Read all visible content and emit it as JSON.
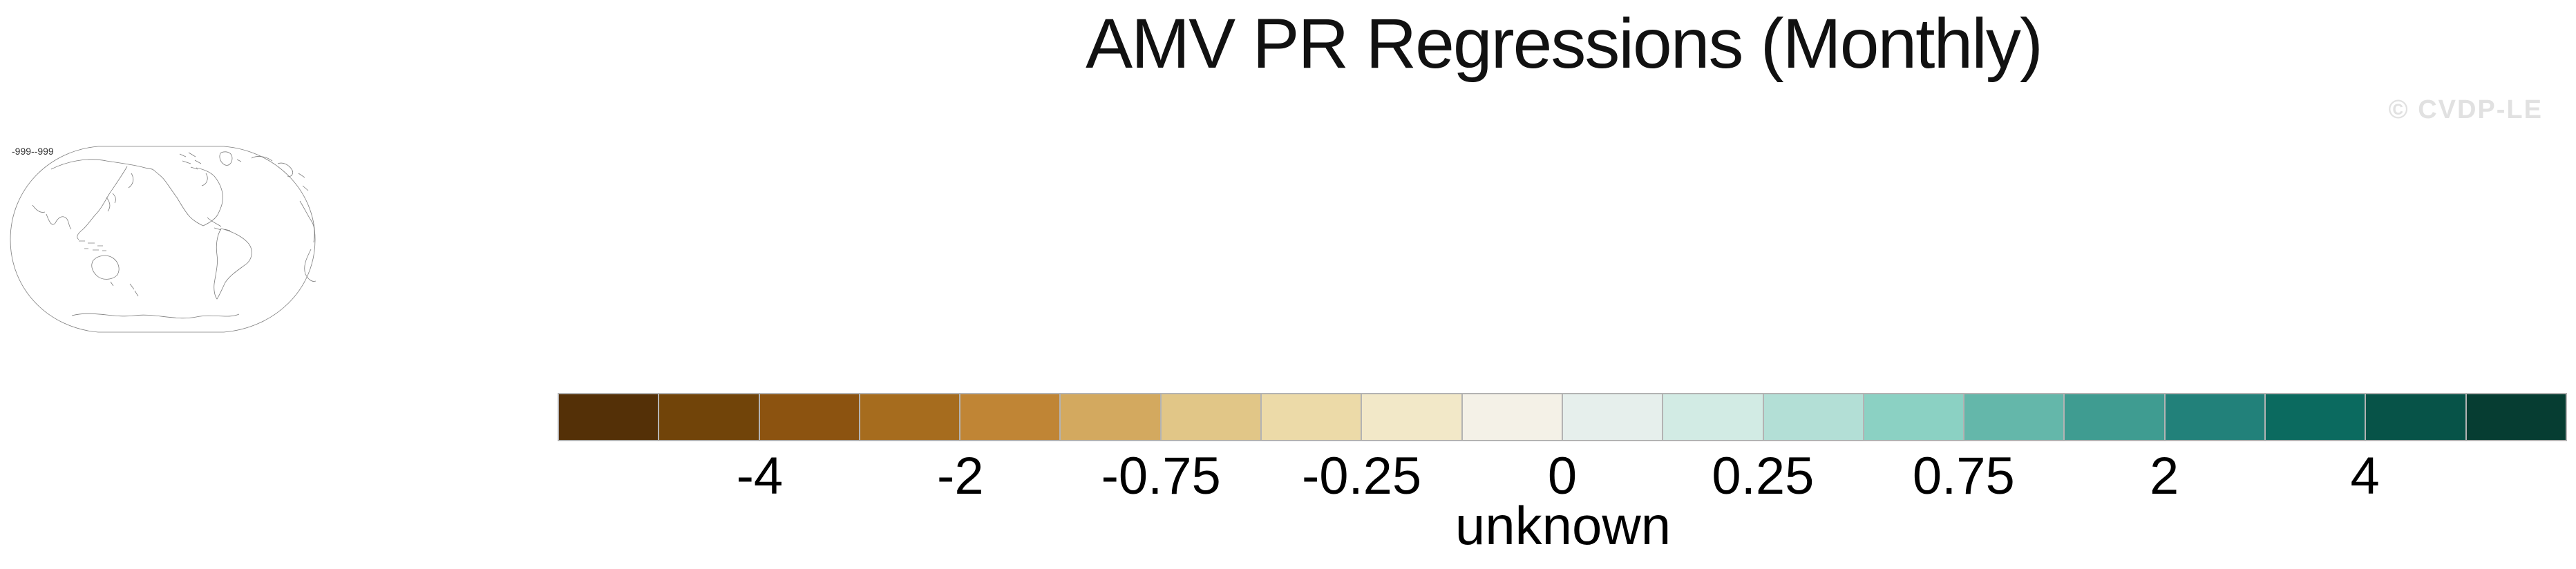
{
  "figure": {
    "title": "AMV PR Regressions (Monthly)",
    "watermark": "© CVDP-LE"
  },
  "map_thumbnail": {
    "period_label": "-999--999"
  },
  "colorbar": {
    "caption": "unknown",
    "tick_labels": [
      "-4",
      "-2",
      "-0.75",
      "-0.25",
      "0",
      "0.25",
      "0.75",
      "2",
      "4"
    ],
    "cell_colors": [
      "#543007",
      "#714409",
      "#8c5310",
      "#a66c1e",
      "#c08535",
      "#d3a95f",
      "#e1c687",
      "#ecdaa8",
      "#f2e8c8",
      "#f4f1e7",
      "#e6efec",
      "#d2ebe4",
      "#b3dfd6",
      "#8bd1c3",
      "#64b7aa",
      "#3f9c91",
      "#22817a",
      "#0b6a5f",
      "#075348",
      "#063d32"
    ],
    "border_color": "#b3b3b3"
  },
  "chart_data": {
    "type": "heatmap",
    "title": "AMV PR Regressions (Monthly)",
    "watermark": "© CVDP-LE",
    "map": {
      "style": "outline-only world map, Pacific-centered oval projection",
      "period_label": "-999--999",
      "data_shading": "none (no regression field plotted)"
    },
    "legend_position": "bottom",
    "colorbar": {
      "caption": "unknown",
      "tick_labels": [
        "-4",
        "-2",
        "-0.75",
        "-0.25",
        "0",
        "0.25",
        "0.75",
        "2",
        "4"
      ],
      "n_cells": 20,
      "tick_placement": "every second cell boundary, starting after 2nd cell",
      "cell_colors": [
        "#543007",
        "#714409",
        "#8c5310",
        "#a66c1e",
        "#c08535",
        "#d3a95f",
        "#e1c687",
        "#ecdaa8",
        "#f2e8c8",
        "#f4f1e7",
        "#e6efec",
        "#d2ebe4",
        "#b3dfd6",
        "#8bd1c3",
        "#64b7aa",
        "#3f9c91",
        "#22817a",
        "#0b6a5f",
        "#075348",
        "#063d32"
      ]
    }
  }
}
